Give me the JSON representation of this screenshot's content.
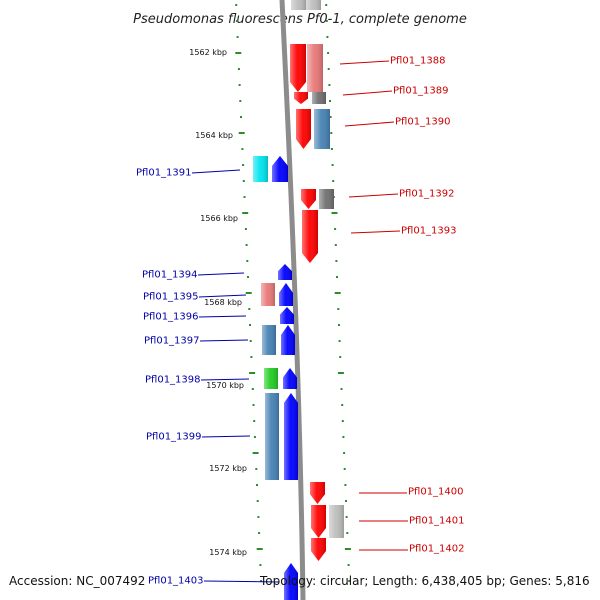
{
  "title": "Pseudomonas fluorescens Pf0-1, complete genome",
  "accession": "Accession: NC_007492",
  "topology": "Topology: circular; Length: 6,438,405 bp; Genes: 5,816",
  "colors": {
    "backbone": "#8c8c8c",
    "tick": "#2e8b2e",
    "forward_label": "#0000aa",
    "reverse_label": "#cc0000",
    "red": "#ff0000",
    "pink": "#e87878",
    "gray": "#707070",
    "lightgray": "#bdbdbd",
    "steelblue": "#4682b4",
    "blue": "#0000ff",
    "cyan": "#00e5ee",
    "green": "#22cc22"
  },
  "ruler": [
    "1562 kbp",
    "1564 kbp",
    "1566 kbp",
    "1568 kbp",
    "1570 kbp",
    "1572 kbp",
    "1574 kbp"
  ],
  "labels": [
    {
      "text": "Pfl01_1388",
      "strand": "reverse"
    },
    {
      "text": "Pfl01_1389",
      "strand": "reverse"
    },
    {
      "text": "Pfl01_1390",
      "strand": "reverse"
    },
    {
      "text": "Pfl01_1391",
      "strand": "forward"
    },
    {
      "text": "Pfl01_1392",
      "strand": "reverse"
    },
    {
      "text": "Pfl01_1393",
      "strand": "reverse"
    },
    {
      "text": "Pfl01_1394",
      "strand": "forward"
    },
    {
      "text": "Pfl01_1395",
      "strand": "forward"
    },
    {
      "text": "Pfl01_1396",
      "strand": "forward"
    },
    {
      "text": "Pfl01_1397",
      "strand": "forward"
    },
    {
      "text": "Pfl01_1398",
      "strand": "forward"
    },
    {
      "text": "Pfl01_1399",
      "strand": "forward"
    },
    {
      "text": "Pfl01_1400",
      "strand": "reverse"
    },
    {
      "text": "Pfl01_1401",
      "strand": "reverse"
    },
    {
      "text": "Pfl01_1402",
      "strand": "reverse"
    },
    {
      "text": "Pfl01_1403",
      "strand": "forward"
    }
  ]
}
